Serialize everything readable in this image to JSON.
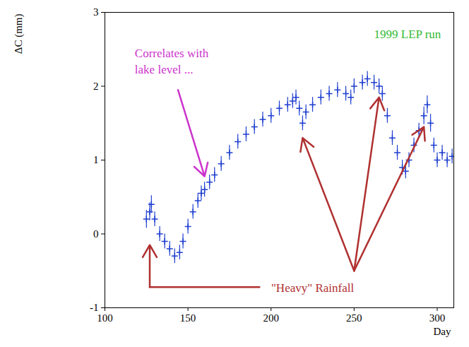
{
  "chart_data": {
    "type": "scatter",
    "y_label": "ΔC (mm)",
    "x_label": "Day",
    "color": "#1f3fd0",
    "marker": "cross",
    "xlim": [
      100,
      310
    ],
    "xticks": [
      100,
      150,
      200,
      250,
      300
    ],
    "ylim": [
      -1,
      3
    ],
    "yticks": [
      -1,
      0,
      1,
      2,
      3
    ],
    "x": [
      125,
      127,
      128,
      130,
      133,
      136,
      139,
      142,
      145,
      147,
      150,
      153,
      156,
      158,
      160,
      163,
      166,
      170,
      175,
      180,
      185,
      190,
      195,
      200,
      205,
      210,
      213,
      215,
      217,
      219,
      221,
      225,
      230,
      235,
      240,
      245,
      248,
      250,
      255,
      258,
      262,
      265,
      267,
      270,
      273,
      276,
      279,
      281,
      283,
      286,
      289,
      292,
      294,
      296,
      298,
      300,
      303,
      306,
      309
    ],
    "values": [
      0.2,
      0.3,
      0.4,
      0.2,
      0.0,
      -0.1,
      -0.2,
      -0.3,
      -0.25,
      -0.1,
      0.1,
      0.3,
      0.45,
      0.55,
      0.6,
      0.7,
      0.8,
      0.95,
      1.1,
      1.25,
      1.35,
      1.45,
      1.55,
      1.6,
      1.7,
      1.75,
      1.8,
      1.85,
      1.7,
      1.5,
      1.65,
      1.75,
      1.85,
      1.9,
      1.95,
      1.9,
      1.85,
      2.0,
      2.05,
      2.1,
      2.05,
      2.0,
      1.9,
      1.6,
      1.3,
      1.1,
      0.9,
      0.85,
      1.0,
      1.2,
      1.4,
      1.6,
      1.75,
      1.5,
      1.2,
      1.0,
      1.1,
      1.0,
      1.05
    ],
    "errors": [
      0.12,
      0.12,
      0.12,
      0.1,
      0.1,
      0.1,
      0.1,
      0.1,
      0.1,
      0.1,
      0.1,
      0.1,
      0.1,
      0.1,
      0.1,
      0.1,
      0.1,
      0.1,
      0.1,
      0.1,
      0.1,
      0.1,
      0.1,
      0.1,
      0.1,
      0.1,
      0.1,
      0.1,
      0.1,
      0.1,
      0.1,
      0.1,
      0.1,
      0.1,
      0.1,
      0.1,
      0.1,
      0.1,
      0.1,
      0.1,
      0.1,
      0.1,
      0.1,
      0.1,
      0.1,
      0.1,
      0.1,
      0.1,
      0.1,
      0.1,
      0.1,
      0.12,
      0.12,
      0.12,
      0.1,
      0.1,
      0.1,
      0.1,
      0.1
    ],
    "annotations": [
      {
        "text": "1999 LEP run",
        "color": "#33bb33",
        "x": 262,
        "y": 2.72
      },
      {
        "text": "Correlates with\nlake level ...",
        "color": "#cc33cc",
        "x": 118,
        "y": 2.35,
        "arrows": [
          [
            [
              144,
              1.95
            ],
            [
              160,
              0.78
            ]
          ]
        ]
      },
      {
        "text": "\"Heavy\" Rainfall",
        "color": "#b03030",
        "x": 225,
        "y": -0.72,
        "arrows": [
          [
            [
              193,
              -0.72
            ],
            [
              127,
              -0.72
            ],
            [
              127,
              -0.15
            ]
          ],
          [
            [
              250,
              -0.5
            ],
            [
              219,
              1.3
            ]
          ],
          [
            [
              250,
              -0.5
            ],
            [
              265,
              1.85
            ]
          ],
          [
            [
              250,
              -0.5
            ],
            [
              292,
              1.45
            ]
          ]
        ]
      }
    ]
  }
}
